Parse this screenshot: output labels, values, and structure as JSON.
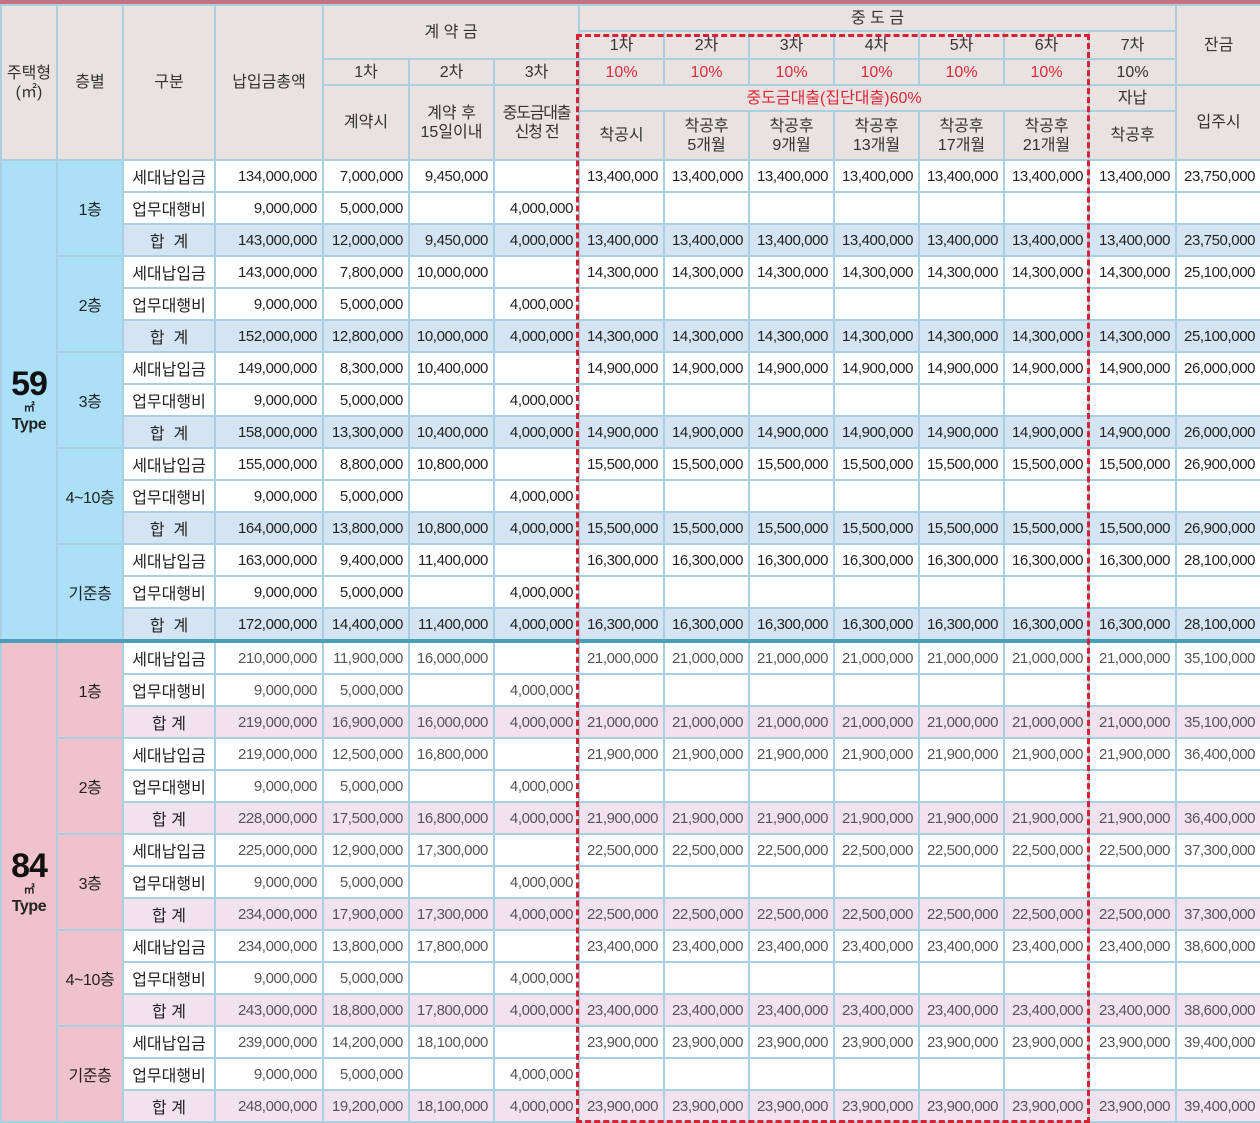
{
  "header": {
    "type": "주택형(㎡)",
    "floor": "층별",
    "category": "구분",
    "total": "납입금총액",
    "deposit": "계 약 금",
    "middle": "중 도 금",
    "balance": "잔금",
    "middle_rounds": [
      "1차",
      "2차",
      "3차",
      "4차",
      "5차",
      "6차",
      "7차"
    ],
    "deposit_rounds": [
      "1차",
      "2차",
      "3차"
    ],
    "middle_percents": [
      "10%",
      "10%",
      "10%",
      "10%",
      "10%",
      "10%",
      "10%"
    ],
    "deposit_timing": [
      "계약시",
      "계약 후 15일이내",
      "중도금대출 신청 전"
    ],
    "loan_label": "중도금대출(집단대출)60%",
    "self_pay": "자납",
    "move_in": "입주시",
    "middle_timing": [
      "착공시",
      "착공후 5개월",
      "착공후 9개월",
      "착공후 13개월",
      "착공후 17개월",
      "착공후 21개월",
      "착공후"
    ]
  },
  "colors": {
    "accent_red": "#e0283a",
    "type59": "#ace0f8",
    "type84": "#f0c3cc",
    "header_bg": "#e9e2e0"
  },
  "types": [
    {
      "num": "59",
      "unit": "㎡",
      "word": "Type",
      "floors": [
        {
          "floor": "1층",
          "rows": [
            {
              "label": "세대납입금",
              "cells": [
                "134,000,000",
                "7,000,000",
                "9,450,000",
                "",
                "13,400,000",
                "13,400,000",
                "13,400,000",
                "13,400,000",
                "13,400,000",
                "13,400,000",
                "13,400,000",
                "23,750,000"
              ]
            },
            {
              "label": "업무대행비",
              "cells": [
                "9,000,000",
                "5,000,000",
                "",
                "4,000,000",
                "",
                "",
                "",
                "",
                "",
                "",
                "",
                ""
              ]
            },
            {
              "label": "합  계",
              "cells": [
                "143,000,000",
                "12,000,000",
                "9,450,000",
                "4,000,000",
                "13,400,000",
                "13,400,000",
                "13,400,000",
                "13,400,000",
                "13,400,000",
                "13,400,000",
                "13,400,000",
                "23,750,000"
              ]
            }
          ]
        },
        {
          "floor": "2층",
          "rows": [
            {
              "label": "세대납입금",
              "cells": [
                "143,000,000",
                "7,800,000",
                "10,000,000",
                "",
                "14,300,000",
                "14,300,000",
                "14,300,000",
                "14,300,000",
                "14,300,000",
                "14,300,000",
                "14,300,000",
                "25,100,000"
              ]
            },
            {
              "label": "업무대행비",
              "cells": [
                "9,000,000",
                "5,000,000",
                "",
                "4,000,000",
                "",
                "",
                "",
                "",
                "",
                "",
                "",
                ""
              ]
            },
            {
              "label": "합  계",
              "cells": [
                "152,000,000",
                "12,800,000",
                "10,000,000",
                "4,000,000",
                "14,300,000",
                "14,300,000",
                "14,300,000",
                "14,300,000",
                "14,300,000",
                "14,300,000",
                "14,300,000",
                "25,100,000"
              ]
            }
          ]
        },
        {
          "floor": "3층",
          "rows": [
            {
              "label": "세대납입금",
              "cells": [
                "149,000,000",
                "8,300,000",
                "10,400,000",
                "",
                "14,900,000",
                "14,900,000",
                "14,900,000",
                "14,900,000",
                "14,900,000",
                "14,900,000",
                "14,900,000",
                "26,000,000"
              ]
            },
            {
              "label": "업무대행비",
              "cells": [
                "9,000,000",
                "5,000,000",
                "",
                "4,000,000",
                "",
                "",
                "",
                "",
                "",
                "",
                "",
                ""
              ]
            },
            {
              "label": "합  계",
              "cells": [
                "158,000,000",
                "13,300,000",
                "10,400,000",
                "4,000,000",
                "14,900,000",
                "14,900,000",
                "14,900,000",
                "14,900,000",
                "14,900,000",
                "14,900,000",
                "14,900,000",
                "26,000,000"
              ]
            }
          ]
        },
        {
          "floor": "4~10층",
          "rows": [
            {
              "label": "세대납입금",
              "cells": [
                "155,000,000",
                "8,800,000",
                "10,800,000",
                "",
                "15,500,000",
                "15,500,000",
                "15,500,000",
                "15,500,000",
                "15,500,000",
                "15,500,000",
                "15,500,000",
                "26,900,000"
              ]
            },
            {
              "label": "업무대행비",
              "cells": [
                "9,000,000",
                "5,000,000",
                "",
                "4,000,000",
                "",
                "",
                "",
                "",
                "",
                "",
                "",
                ""
              ]
            },
            {
              "label": "합  계",
              "cells": [
                "164,000,000",
                "13,800,000",
                "10,800,000",
                "4,000,000",
                "15,500,000",
                "15,500,000",
                "15,500,000",
                "15,500,000",
                "15,500,000",
                "15,500,000",
                "15,500,000",
                "26,900,000"
              ]
            }
          ]
        },
        {
          "floor": "기준층",
          "rows": [
            {
              "label": "세대납입금",
              "cells": [
                "163,000,000",
                "9,400,000",
                "11,400,000",
                "",
                "16,300,000",
                "16,300,000",
                "16,300,000",
                "16,300,000",
                "16,300,000",
                "16,300,000",
                "16,300,000",
                "28,100,000"
              ]
            },
            {
              "label": "업무대행비",
              "cells": [
                "9,000,000",
                "5,000,000",
                "",
                "4,000,000",
                "",
                "",
                "",
                "",
                "",
                "",
                "",
                ""
              ]
            },
            {
              "label": "합  계",
              "cells": [
                "172,000,000",
                "14,400,000",
                "11,400,000",
                "4,000,000",
                "16,300,000",
                "16,300,000",
                "16,300,000",
                "16,300,000",
                "16,300,000",
                "16,300,000",
                "16,300,000",
                "28,100,000"
              ]
            }
          ]
        }
      ]
    },
    {
      "num": "84",
      "unit": "㎡",
      "word": "Type",
      "floors": [
        {
          "floor": "1층",
          "rows": [
            {
              "label": "세대납입금",
              "cells": [
                "210,000,000",
                "11,900,000",
                "16,000,000",
                "",
                "21,000,000",
                "21,000,000",
                "21,000,000",
                "21,000,000",
                "21,000,000",
                "21,000,000",
                "21,000,000",
                "35,100,000"
              ]
            },
            {
              "label": "업무대행비",
              "cells": [
                "9,000,000",
                "5,000,000",
                "",
                "4,000,000",
                "",
                "",
                "",
                "",
                "",
                "",
                "",
                ""
              ]
            },
            {
              "label": "합 계",
              "cells": [
                "219,000,000",
                "16,900,000",
                "16,000,000",
                "4,000,000",
                "21,000,000",
                "21,000,000",
                "21,000,000",
                "21,000,000",
                "21,000,000",
                "21,000,000",
                "21,000,000",
                "35,100,000"
              ]
            }
          ]
        },
        {
          "floor": "2층",
          "rows": [
            {
              "label": "세대납입금",
              "cells": [
                "219,000,000",
                "12,500,000",
                "16,800,000",
                "",
                "21,900,000",
                "21,900,000",
                "21,900,000",
                "21,900,000",
                "21,900,000",
                "21,900,000",
                "21,900,000",
                "36,400,000"
              ]
            },
            {
              "label": "업무대행비",
              "cells": [
                "9,000,000",
                "5,000,000",
                "",
                "4,000,000",
                "",
                "",
                "",
                "",
                "",
                "",
                "",
                ""
              ]
            },
            {
              "label": "합 계",
              "cells": [
                "228,000,000",
                "17,500,000",
                "16,800,000",
                "4,000,000",
                "21,900,000",
                "21,900,000",
                "21,900,000",
                "21,900,000",
                "21,900,000",
                "21,900,000",
                "21,900,000",
                "36,400,000"
              ]
            }
          ]
        },
        {
          "floor": "3층",
          "rows": [
            {
              "label": "세대납입금",
              "cells": [
                "225,000,000",
                "12,900,000",
                "17,300,000",
                "",
                "22,500,000",
                "22,500,000",
                "22,500,000",
                "22,500,000",
                "22,500,000",
                "22,500,000",
                "22,500,000",
                "37,300,000"
              ]
            },
            {
              "label": "업무대행비",
              "cells": [
                "9,000,000",
                "5,000,000",
                "",
                "4,000,000",
                "",
                "",
                "",
                "",
                "",
                "",
                "",
                ""
              ]
            },
            {
              "label": "합 계",
              "cells": [
                "234,000,000",
                "17,900,000",
                "17,300,000",
                "4,000,000",
                "22,500,000",
                "22,500,000",
                "22,500,000",
                "22,500,000",
                "22,500,000",
                "22,500,000",
                "22,500,000",
                "37,300,000"
              ]
            }
          ]
        },
        {
          "floor": "4~10층",
          "rows": [
            {
              "label": "세대납입금",
              "cells": [
                "234,000,000",
                "13,800,000",
                "17,800,000",
                "",
                "23,400,000",
                "23,400,000",
                "23,400,000",
                "23,400,000",
                "23,400,000",
                "23,400,000",
                "23,400,000",
                "38,600,000"
              ]
            },
            {
              "label": "업무대행비",
              "cells": [
                "9,000,000",
                "5,000,000",
                "",
                "4,000,000",
                "",
                "",
                "",
                "",
                "",
                "",
                "",
                ""
              ]
            },
            {
              "label": "합 계",
              "cells": [
                "243,000,000",
                "18,800,000",
                "17,800,000",
                "4,000,000",
                "23,400,000",
                "23,400,000",
                "23,400,000",
                "23,400,000",
                "23,400,000",
                "23,400,000",
                "23,400,000",
                "38,600,000"
              ]
            }
          ]
        },
        {
          "floor": "기준층",
          "rows": [
            {
              "label": "세대납입금",
              "cells": [
                "239,000,000",
                "14,200,000",
                "18,100,000",
                "",
                "23,900,000",
                "23,900,000",
                "23,900,000",
                "23,900,000",
                "23,900,000",
                "23,900,000",
                "23,900,000",
                "39,400,000"
              ]
            },
            {
              "label": "업무대행비",
              "cells": [
                "9,000,000",
                "5,000,000",
                "",
                "4,000,000",
                "",
                "",
                "",
                "",
                "",
                "",
                "",
                ""
              ]
            },
            {
              "label": "합 계",
              "cells": [
                "248,000,000",
                "19,200,000",
                "18,100,000",
                "4,000,000",
                "23,900,000",
                "23,900,000",
                "23,900,000",
                "23,900,000",
                "23,900,000",
                "23,900,000",
                "23,900,000",
                "39,400,000"
              ]
            }
          ]
        }
      ]
    }
  ]
}
